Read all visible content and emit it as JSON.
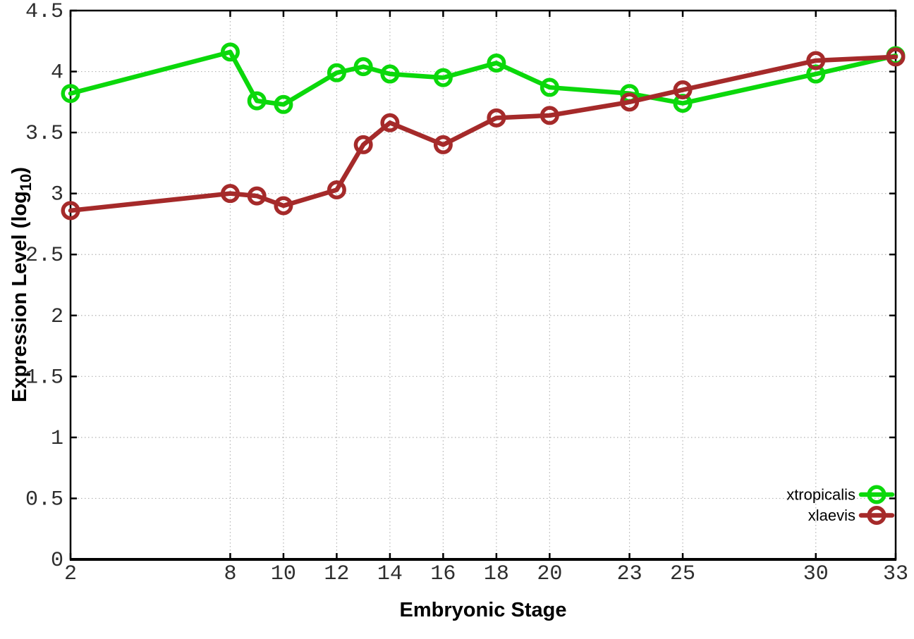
{
  "chart_data": {
    "type": "line",
    "title": "",
    "xlabel": "Embryonic Stage",
    "ylabel": "Expression Level (log10)",
    "ylabel_parts": {
      "main": "Expression Level (log",
      "sub": "10",
      "end": ")"
    },
    "xlim": [
      2,
      33
    ],
    "ylim": [
      0,
      4.5
    ],
    "grid": true,
    "grid_style": "dotted",
    "legend_position": "bottom-right",
    "background_color": "#ffffff",
    "grid_color": "#b4b4b4",
    "axis_color": "#000000",
    "tick_label_color": "#2e2e2e",
    "xticks": [
      {
        "value": 2,
        "label": "2"
      },
      {
        "value": 8,
        "label": "8"
      },
      {
        "value": 10,
        "label": "10"
      },
      {
        "value": 12,
        "label": "12"
      },
      {
        "value": 14,
        "label": "14"
      },
      {
        "value": 16,
        "label": "16"
      },
      {
        "value": 18,
        "label": "18"
      },
      {
        "value": 20,
        "label": "20"
      },
      {
        "value": 23,
        "label": "23"
      },
      {
        "value": 25,
        "label": "25"
      },
      {
        "value": 30,
        "label": "30"
      },
      {
        "value": 33,
        "label": "33"
      }
    ],
    "yticks": [
      {
        "value": 0,
        "label": "0"
      },
      {
        "value": 0.5,
        "label": "0.5"
      },
      {
        "value": 1,
        "label": "1"
      },
      {
        "value": 1.5,
        "label": "1.5"
      },
      {
        "value": 2,
        "label": "2"
      },
      {
        "value": 2.5,
        "label": "2.5"
      },
      {
        "value": 3,
        "label": "3"
      },
      {
        "value": 3.5,
        "label": "3.5"
      },
      {
        "value": 4,
        "label": "4"
      },
      {
        "value": 4.5,
        "label": "4.5"
      }
    ],
    "x": [
      2,
      8,
      9,
      10,
      12,
      13,
      14,
      16,
      18,
      20,
      23,
      25,
      30,
      33
    ],
    "series": [
      {
        "name": "xtropicalis",
        "color": "#0bd80b",
        "marker": "open-circle",
        "values": [
          3.82,
          4.16,
          3.76,
          3.73,
          3.99,
          4.04,
          3.98,
          3.95,
          4.07,
          3.87,
          3.82,
          3.74,
          3.98,
          4.13
        ]
      },
      {
        "name": "xlaevis",
        "color": "#a52a2a",
        "marker": "open-circle",
        "values": [
          2.86,
          3.0,
          2.98,
          2.9,
          3.03,
          3.4,
          3.58,
          3.4,
          3.62,
          3.64,
          3.75,
          3.85,
          4.09,
          4.12
        ]
      }
    ]
  }
}
